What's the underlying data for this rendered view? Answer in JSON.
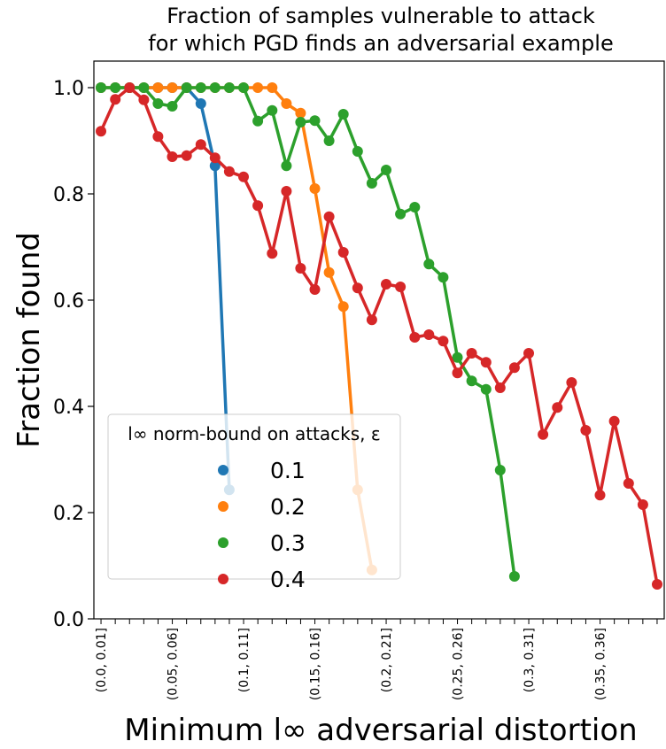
{
  "chart_data": {
    "type": "line",
    "title": [
      "Fraction of samples vulnerable to attack",
      "for which PGD finds an adversarial example"
    ],
    "xlabel": "Minimum l∞ adversarial distortion",
    "ylabel": "Fraction found",
    "ylim": [
      0,
      1.05
    ],
    "yticks": [
      "0.0",
      "0.2",
      "0.4",
      "0.6",
      "0.8",
      "1.0"
    ],
    "xtick_labels": [
      "(0.0, 0.01]",
      "(0.05, 0.06]",
      "(0.1, 0.11]",
      "(0.15, 0.16]",
      "(0.2, 0.21]",
      "(0.25, 0.26]",
      "(0.3, 0.31]",
      "(0.35, 0.36]"
    ],
    "legend": {
      "title": "l∞ norm-bound on attacks, ε",
      "position": "lower left"
    },
    "grid": false,
    "series": [
      {
        "name": "0.1",
        "color": "#1f77b4",
        "x": [
          0.005,
          0.015,
          0.025,
          0.035,
          0.045,
          0.055,
          0.065,
          0.075,
          0.085,
          0.095
        ],
        "y": [
          1.0,
          1.0,
          1.0,
          1.0,
          1.0,
          1.0,
          1.0,
          0.97,
          0.853,
          0.243
        ]
      },
      {
        "name": "0.2",
        "color": "#ff7f0e",
        "x": [
          0.005,
          0.015,
          0.025,
          0.035,
          0.045,
          0.055,
          0.065,
          0.075,
          0.085,
          0.095,
          0.105,
          0.115,
          0.125,
          0.135,
          0.145,
          0.155,
          0.165,
          0.175,
          0.185,
          0.195
        ],
        "y": [
          1.0,
          1.0,
          1.0,
          1.0,
          1.0,
          1.0,
          1.0,
          1.0,
          1.0,
          1.0,
          1.0,
          1.0,
          1.0,
          0.97,
          0.952,
          0.81,
          0.652,
          0.588,
          0.243,
          0.092
        ]
      },
      {
        "name": "0.3",
        "color": "#2ca02c",
        "x": [
          0.005,
          0.015,
          0.025,
          0.035,
          0.045,
          0.055,
          0.065,
          0.075,
          0.085,
          0.095,
          0.105,
          0.115,
          0.125,
          0.135,
          0.145,
          0.155,
          0.165,
          0.175,
          0.185,
          0.195,
          0.205,
          0.215,
          0.225,
          0.235,
          0.245,
          0.255,
          0.265,
          0.275,
          0.285,
          0.295
        ],
        "y": [
          1.0,
          1.0,
          1.0,
          1.0,
          0.97,
          0.965,
          1.0,
          1.0,
          1.0,
          1.0,
          1.0,
          0.937,
          0.957,
          0.853,
          0.935,
          0.938,
          0.9,
          0.95,
          0.88,
          0.82,
          0.845,
          0.762,
          0.775,
          0.668,
          0.643,
          0.492,
          0.448,
          0.432,
          0.28,
          0.08
        ]
      },
      {
        "name": "0.4",
        "color": "#d62728",
        "x": [
          0.005,
          0.015,
          0.025,
          0.035,
          0.045,
          0.055,
          0.065,
          0.075,
          0.085,
          0.095,
          0.105,
          0.115,
          0.125,
          0.135,
          0.145,
          0.155,
          0.165,
          0.175,
          0.185,
          0.195,
          0.205,
          0.215,
          0.225,
          0.235,
          0.245,
          0.255,
          0.265,
          0.275,
          0.285,
          0.295,
          0.305,
          0.315,
          0.325,
          0.335,
          0.345,
          0.355,
          0.365,
          0.375,
          0.385,
          0.395
        ],
        "y": [
          0.918,
          0.978,
          1.0,
          0.977,
          0.908,
          0.87,
          0.872,
          0.893,
          0.868,
          0.842,
          0.832,
          0.778,
          0.688,
          0.805,
          0.66,
          0.62,
          0.757,
          0.69,
          0.623,
          0.563,
          0.63,
          0.625,
          0.53,
          0.535,
          0.523,
          0.463,
          0.5,
          0.483,
          0.435,
          0.473,
          0.5,
          0.347,
          0.398,
          0.445,
          0.355,
          0.233,
          0.372,
          0.255,
          0.215,
          0.065
        ]
      }
    ]
  }
}
